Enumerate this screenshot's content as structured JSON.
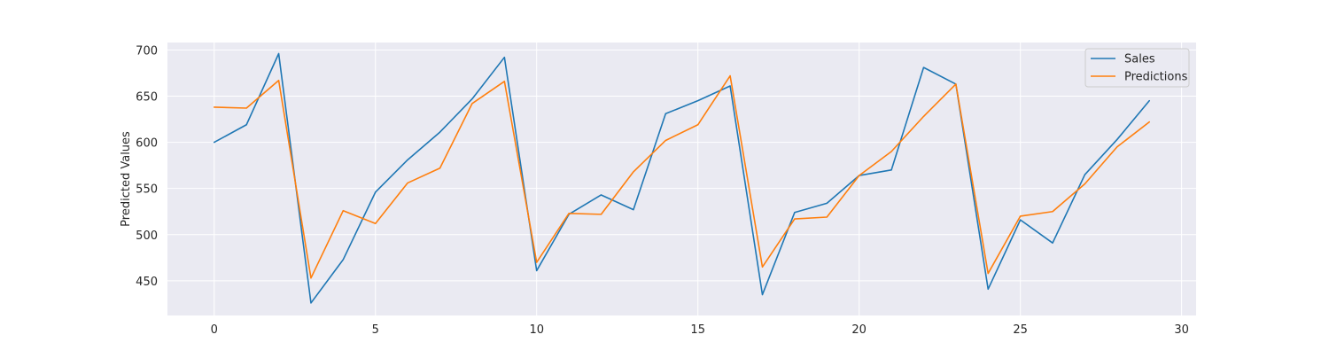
{
  "chart_data": {
    "type": "line",
    "title": "",
    "xlabel": "",
    "ylabel": "Predicted Values",
    "xlim": [
      -1.45,
      30.45
    ],
    "ylim": [
      412.5,
      708
    ],
    "xticks": [
      0,
      5,
      10,
      15,
      20,
      25,
      30
    ],
    "yticks": [
      450,
      500,
      550,
      600,
      650,
      700
    ],
    "grid": true,
    "legend_position": "top-right",
    "background": "#eaeaf2",
    "x": [
      0,
      1,
      2,
      3,
      4,
      5,
      6,
      7,
      8,
      9,
      10,
      11,
      12,
      13,
      14,
      15,
      16,
      17,
      18,
      19,
      20,
      21,
      22,
      23,
      24,
      25,
      26,
      27,
      28,
      29
    ],
    "series": [
      {
        "name": "Sales",
        "color": "#1f77b4",
        "values": [
          600,
          619,
          696,
          426,
          473,
          546,
          581,
          611,
          647,
          692,
          461,
          522,
          543,
          527,
          631,
          645,
          661,
          435,
          524,
          534,
          564,
          570,
          681,
          663,
          441,
          516,
          491,
          565,
          603,
          645
        ]
      },
      {
        "name": "Predictions",
        "color": "#ff7f0e",
        "values": [
          638,
          637,
          667,
          453,
          526,
          512,
          556,
          572,
          642,
          666,
          470,
          523,
          522,
          568,
          602,
          619,
          672,
          465,
          517,
          519,
          564,
          590,
          628,
          663,
          458,
          520,
          525,
          555,
          595,
          622
        ]
      }
    ]
  }
}
